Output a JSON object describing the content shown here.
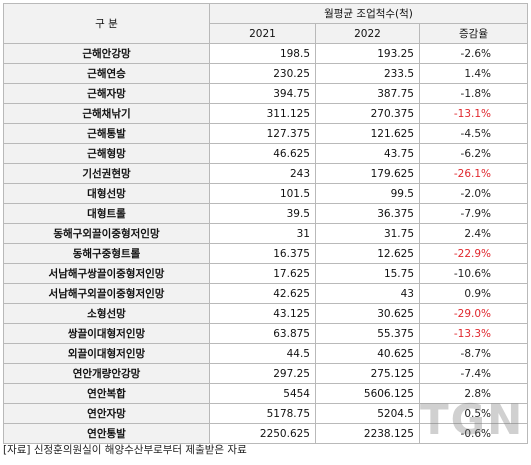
{
  "table": {
    "header": {
      "category": "구 분",
      "group": "월평균 조업척수(척)",
      "columns": [
        "2021",
        "2022",
        "증감율"
      ]
    },
    "rows": [
      {
        "label": "근해안강망",
        "v2021": "198.5",
        "v2022": "193.25",
        "rate": "-2.6%",
        "rate_color": "#222222"
      },
      {
        "label": "근해연승",
        "v2021": "230.25",
        "v2022": "233.5",
        "rate": "1.4%",
        "rate_color": "#222222"
      },
      {
        "label": "근해자망",
        "v2021": "394.75",
        "v2022": "387.75",
        "rate": "-1.8%",
        "rate_color": "#222222"
      },
      {
        "label": "근해채낚기",
        "v2021": "311.125",
        "v2022": "270.375",
        "rate": "-13.1%",
        "rate_color": "#e0282e"
      },
      {
        "label": "근해통발",
        "v2021": "127.375",
        "v2022": "121.625",
        "rate": "-4.5%",
        "rate_color": "#222222"
      },
      {
        "label": "근해형망",
        "v2021": "46.625",
        "v2022": "43.75",
        "rate": "-6.2%",
        "rate_color": "#222222"
      },
      {
        "label": "기선권현망",
        "v2021": "243",
        "v2022": "179.625",
        "rate": "-26.1%",
        "rate_color": "#e0282e"
      },
      {
        "label": "대형선망",
        "v2021": "101.5",
        "v2022": "99.5",
        "rate": "-2.0%",
        "rate_color": "#222222"
      },
      {
        "label": "대형트롤",
        "v2021": "39.5",
        "v2022": "36.375",
        "rate": "-7.9%",
        "rate_color": "#222222"
      },
      {
        "label": "동해구외끌이중형저인망",
        "v2021": "31",
        "v2022": "31.75",
        "rate": "2.4%",
        "rate_color": "#222222"
      },
      {
        "label": "동해구중형트롤",
        "v2021": "16.375",
        "v2022": "12.625",
        "rate": "-22.9%",
        "rate_color": "#e0282e"
      },
      {
        "label": "서남해구쌍끌이중형저인망",
        "v2021": "17.625",
        "v2022": "15.75",
        "rate": "-10.6%",
        "rate_color": "#222222"
      },
      {
        "label": "서남해구외끌이중형저인망",
        "v2021": "42.625",
        "v2022": "43",
        "rate": "0.9%",
        "rate_color": "#222222"
      },
      {
        "label": "소형선망",
        "v2021": "43.125",
        "v2022": "30.625",
        "rate": "-29.0%",
        "rate_color": "#e0282e"
      },
      {
        "label": "쌍끌이대형저인망",
        "v2021": "63.875",
        "v2022": "55.375",
        "rate": "-13.3%",
        "rate_color": "#e0282e"
      },
      {
        "label": "외끌이대형저인망",
        "v2021": "44.5",
        "v2022": "40.625",
        "rate": "-8.7%",
        "rate_color": "#222222"
      },
      {
        "label": "연안개량안강망",
        "v2021": "297.25",
        "v2022": "275.125",
        "rate": "-7.4%",
        "rate_color": "#222222"
      },
      {
        "label": "연안복합",
        "v2021": "5454",
        "v2022": "5606.125",
        "rate": "2.8%",
        "rate_color": "#222222"
      },
      {
        "label": "연안자망",
        "v2021": "5178.75",
        "v2022": "5204.5",
        "rate": "0.5%",
        "rate_color": "#222222"
      },
      {
        "label": "연안통발",
        "v2021": "2250.625",
        "v2022": "2238.125",
        "rate": "-0.6%",
        "rate_color": "#222222"
      }
    ]
  },
  "footer": {
    "source": "[자료] 신정훈의원실이 해양수산부로부터 제출받은 자료"
  },
  "watermark": "TGN"
}
